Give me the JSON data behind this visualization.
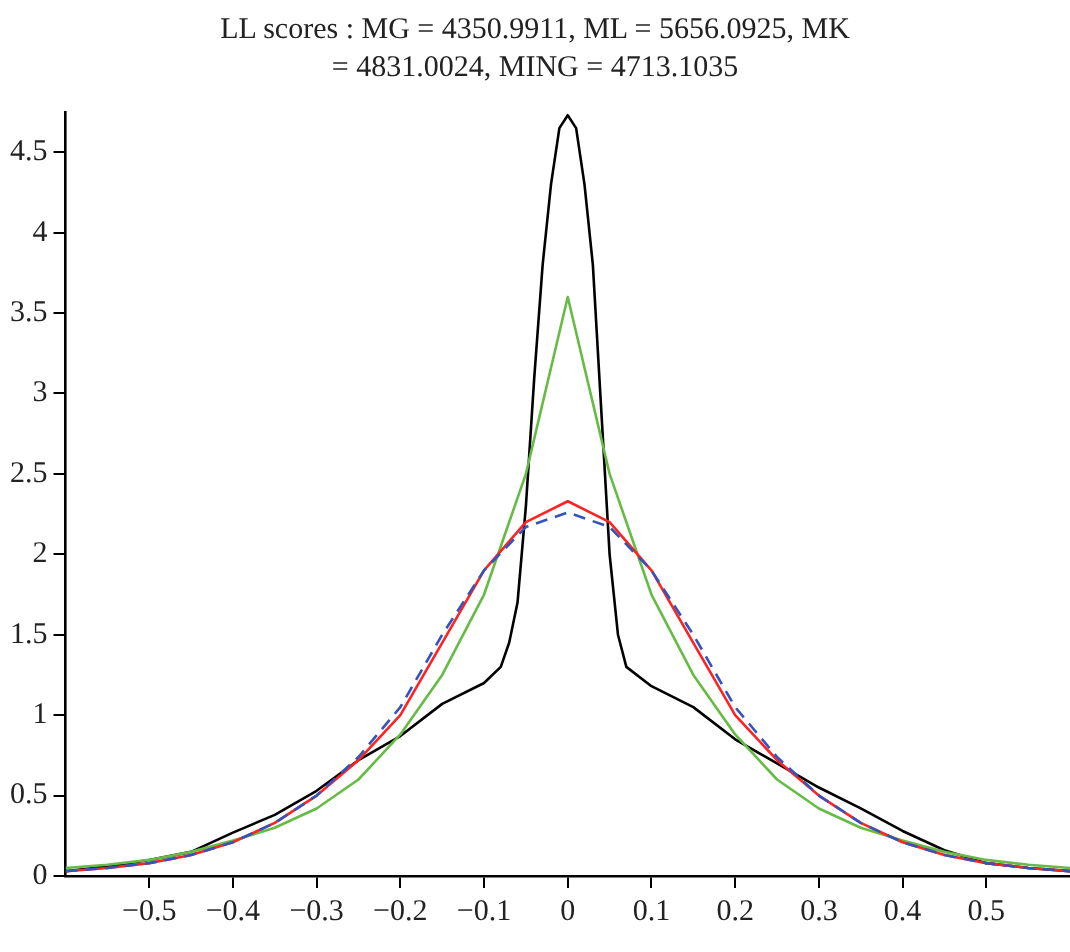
{
  "chart_data": {
    "type": "line",
    "title": "LL scores : MG = 4350.9911, ML = 5656.0925, MK = 4831.0024, MING = 4713.1035",
    "xlim": [
      -0.6,
      0.6
    ],
    "xticks": [
      -0.5,
      -0.4,
      -0.3,
      -0.2,
      -0.1,
      0,
      0.1,
      0.2,
      0.3,
      0.4,
      0.5
    ],
    "ylim": [
      0,
      4.75
    ],
    "yticks": [
      0,
      0.5,
      1,
      1.5,
      2,
      2.5,
      3,
      3.5,
      4,
      4.5
    ],
    "grid": false,
    "legend": false,
    "marker": "none",
    "series": [
      {
        "color": "#000000",
        "line_style": "solid",
        "x": [
          -0.6,
          -0.55,
          -0.5,
          -0.45,
          -0.4,
          -0.35,
          -0.3,
          -0.25,
          -0.2,
          -0.15,
          -0.1,
          -0.08,
          -0.07,
          -0.06,
          -0.05,
          -0.04,
          -0.03,
          -0.02,
          -0.01,
          0,
          0.01,
          0.02,
          0.03,
          0.04,
          0.05,
          0.06,
          0.07,
          0.1,
          0.15,
          0.2,
          0.25,
          0.3,
          0.35,
          0.4,
          0.45,
          0.5,
          0.55,
          0.6
        ],
        "values": [
          0.03,
          0.06,
          0.1,
          0.15,
          0.27,
          0.38,
          0.53,
          0.72,
          0.87,
          1.07,
          1.2,
          1.3,
          1.45,
          1.7,
          2.3,
          3.1,
          3.8,
          4.3,
          4.65,
          4.73,
          4.65,
          4.3,
          3.8,
          2.9,
          2.0,
          1.5,
          1.3,
          1.18,
          1.05,
          0.85,
          0.7,
          0.55,
          0.42,
          0.28,
          0.16,
          0.08,
          0.05,
          0.03
        ]
      },
      {
        "color": "#66bb44",
        "line_style": "solid",
        "x": [
          -0.6,
          -0.55,
          -0.5,
          -0.45,
          -0.4,
          -0.35,
          -0.3,
          -0.25,
          -0.2,
          -0.15,
          -0.1,
          -0.05,
          0,
          0.05,
          0.1,
          0.15,
          0.2,
          0.25,
          0.3,
          0.35,
          0.4,
          0.45,
          0.5,
          0.55,
          0.6
        ],
        "values": [
          0.05,
          0.07,
          0.1,
          0.15,
          0.22,
          0.3,
          0.42,
          0.6,
          0.88,
          1.25,
          1.75,
          2.5,
          3.6,
          2.5,
          1.75,
          1.25,
          0.88,
          0.6,
          0.42,
          0.3,
          0.22,
          0.15,
          0.1,
          0.07,
          0.05
        ]
      },
      {
        "color": "#ff2222",
        "line_style": "solid",
        "x": [
          -0.6,
          -0.55,
          -0.5,
          -0.45,
          -0.4,
          -0.35,
          -0.3,
          -0.25,
          -0.2,
          -0.15,
          -0.1,
          -0.05,
          0,
          0.05,
          0.1,
          0.15,
          0.2,
          0.25,
          0.3,
          0.35,
          0.4,
          0.45,
          0.5,
          0.55,
          0.6
        ],
        "values": [
          0.03,
          0.05,
          0.08,
          0.13,
          0.21,
          0.33,
          0.5,
          0.72,
          1.0,
          1.45,
          1.9,
          2.2,
          2.33,
          2.2,
          1.9,
          1.45,
          1.0,
          0.72,
          0.5,
          0.33,
          0.21,
          0.13,
          0.08,
          0.05,
          0.03
        ]
      },
      {
        "color": "#3355bb",
        "line_style": "dashed",
        "x": [
          -0.6,
          -0.55,
          -0.5,
          -0.45,
          -0.4,
          -0.35,
          -0.3,
          -0.25,
          -0.2,
          -0.15,
          -0.1,
          -0.05,
          0,
          0.05,
          0.1,
          0.15,
          0.2,
          0.25,
          0.3,
          0.35,
          0.4,
          0.45,
          0.5,
          0.55,
          0.6
        ],
        "values": [
          0.03,
          0.05,
          0.08,
          0.13,
          0.21,
          0.33,
          0.5,
          0.74,
          1.05,
          1.5,
          1.9,
          2.17,
          2.26,
          2.17,
          1.9,
          1.5,
          1.05,
          0.74,
          0.5,
          0.33,
          0.21,
          0.13,
          0.08,
          0.05,
          0.03
        ]
      }
    ]
  }
}
